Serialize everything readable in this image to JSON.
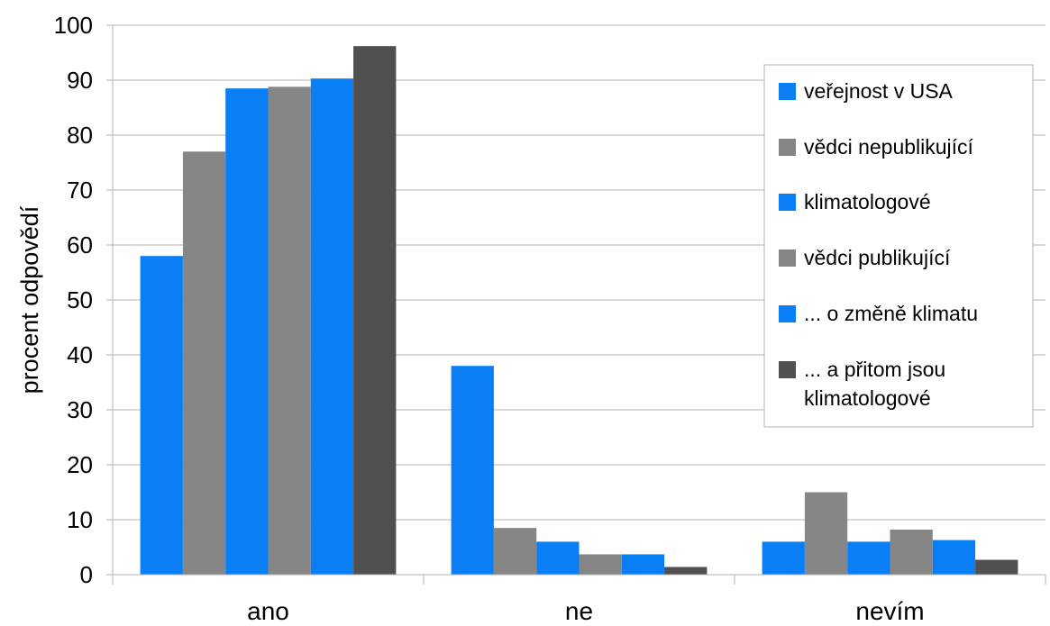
{
  "chart_data": {
    "type": "bar",
    "title": "",
    "xlabel": "",
    "ylabel": "procent odpovědí",
    "ylim": [
      0,
      100
    ],
    "yticks": [
      0,
      10,
      20,
      30,
      40,
      50,
      60,
      70,
      80,
      90,
      100
    ],
    "grid": true,
    "legend_position": "right",
    "categories": [
      "ano",
      "ne",
      "nevím"
    ],
    "series": [
      {
        "name": "veřejnost v USA",
        "color": "#0a7ff5",
        "values": [
          58,
          38,
          6
        ]
      },
      {
        "name": "vědci nepublikující",
        "color": "#868686",
        "values": [
          77,
          8.5,
          15
        ]
      },
      {
        "name": "klimatologové",
        "color": "#0a7ff5",
        "values": [
          88.5,
          6,
          6
        ]
      },
      {
        "name": "vědci publikující",
        "color": "#868686",
        "values": [
          88.8,
          3.7,
          8.2
        ]
      },
      {
        "name": "... o změně klimatu",
        "color": "#0a7ff5",
        "values": [
          90.3,
          3.7,
          6.3
        ]
      },
      {
        "name": "... a přitom jsou klimatologové",
        "legend_lines": [
          "... a přitom jsou",
          "klimatologové"
        ],
        "color": "#505050",
        "values": [
          96.2,
          1.4,
          2.7
        ]
      }
    ]
  }
}
